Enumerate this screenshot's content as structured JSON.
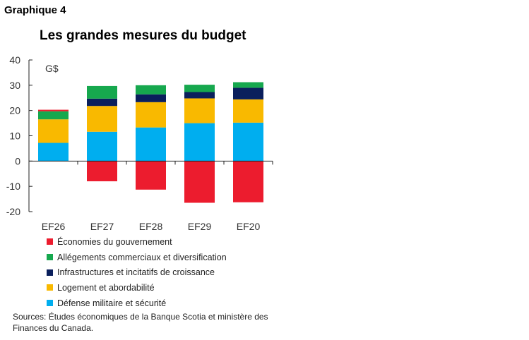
{
  "figure_label": "Graphique 4",
  "chart_data": {
    "type": "bar",
    "stacked": true,
    "title": "Les grandes mesures du budget",
    "unit_label": "G$",
    "xlabel": "",
    "ylabel": "",
    "ylim": [
      -20,
      40
    ],
    "yticks": [
      40,
      30,
      20,
      10,
      0,
      -10,
      -20
    ],
    "categories": [
      "EF26",
      "EF27",
      "EF28",
      "EF29",
      "EF20"
    ],
    "grid": false,
    "legend_position": "bottom",
    "series": [
      {
        "name": "Économies du gouvernement",
        "color": "#ec1c2e",
        "values": [
          0.6,
          -8,
          -11.3,
          -16.5,
          -16.3
        ]
      },
      {
        "name": "Allégements commerciaux et diversification",
        "color": "#16a84e",
        "values": [
          3.2,
          5,
          3.6,
          2.9,
          2.2
        ]
      },
      {
        "name": "Infrastructures et incitatifs de croissance",
        "color": "#0a1f5c",
        "values": [
          0,
          2.9,
          3.1,
          2.5,
          4.6
        ]
      },
      {
        "name": "Logement et abordabilité",
        "color": "#f9b900",
        "values": [
          9.3,
          10.2,
          10,
          9.8,
          9.2
        ]
      },
      {
        "name": "Défense militaire et sécurité",
        "color": "#00aeef",
        "values": [
          7.2,
          11.6,
          13.3,
          15,
          15.2
        ]
      }
    ]
  },
  "source": "Sources: Études économiques de la Banque Scotia et ministère des Finances du Canada."
}
